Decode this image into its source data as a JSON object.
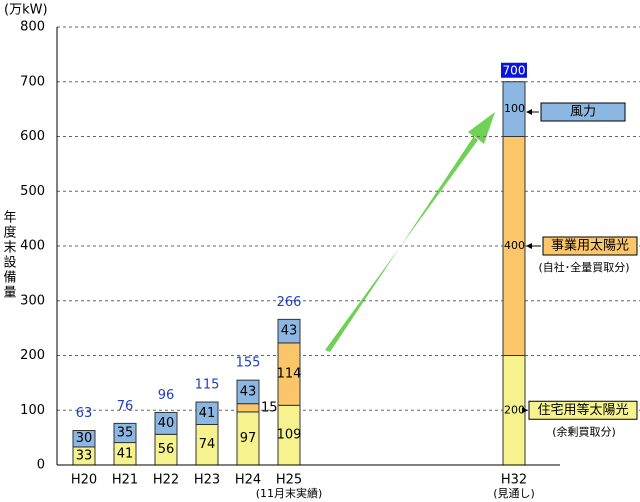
{
  "chart_data": {
    "type": "bar",
    "stacked": true,
    "y_unit": "(万kW)",
    "y_label": "年度末設備量",
    "categories": [
      "H20",
      "H21",
      "H22",
      "H23",
      "H24",
      "H25",
      "H32"
    ],
    "category_notes": [
      null,
      null,
      null,
      null,
      null,
      "(11月末実績)",
      "(見通し)"
    ],
    "series": [
      {
        "name": "住宅用等太陽光",
        "note": "(余剰買取分)",
        "color": "#f6f38e",
        "values": [
          33,
          41,
          56,
          74,
          97,
          109,
          200
        ]
      },
      {
        "name": "事業用太陽光",
        "note": "(自社･全量買取分)",
        "color": "#fbc669",
        "values": [
          null,
          null,
          null,
          null,
          15,
          114,
          400
        ]
      },
      {
        "name": "風力",
        "note": null,
        "color": "#8db7e3",
        "values": [
          30,
          35,
          40,
          41,
          43,
          43,
          100
        ]
      }
    ],
    "totals": [
      63,
      76,
      96,
      115,
      155,
      266,
      700
    ],
    "ylim": [
      0,
      800
    ],
    "yticks": [
      0,
      100,
      200,
      300,
      400,
      500,
      600,
      700,
      800
    ],
    "grid": true
  }
}
